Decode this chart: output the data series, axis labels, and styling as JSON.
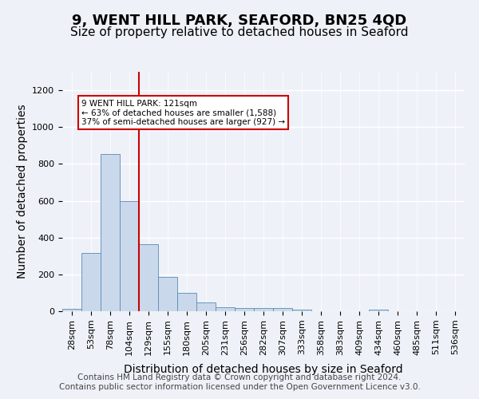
{
  "title": "9, WENT HILL PARK, SEAFORD, BN25 4QD",
  "subtitle": "Size of property relative to detached houses in Seaford",
  "xlabel": "Distribution of detached houses by size in Seaford",
  "ylabel": "Number of detached properties",
  "bin_labels": [
    "28sqm",
    "53sqm",
    "78sqm",
    "104sqm",
    "129sqm",
    "155sqm",
    "180sqm",
    "205sqm",
    "231sqm",
    "256sqm",
    "282sqm",
    "307sqm",
    "333sqm",
    "358sqm",
    "383sqm",
    "409sqm",
    "434sqm",
    "460sqm",
    "485sqm",
    "511sqm",
    "536sqm"
  ],
  "bar_heights": [
    15,
    315,
    855,
    600,
    365,
    185,
    100,
    48,
    20,
    18,
    18,
    18,
    8,
    0,
    0,
    0,
    8,
    0,
    0,
    0,
    0
  ],
  "bar_color": "#c9d9eb",
  "bar_edge_color": "#5b8ab5",
  "bar_width": 1.0,
  "ylim": [
    0,
    1300
  ],
  "yticks": [
    0,
    200,
    400,
    600,
    800,
    1000,
    1200
  ],
  "vline_x": 3.5,
  "annotation_text": "9 WENT HILL PARK: 121sqm\n← 63% of detached houses are smaller (1,588)\n37% of semi-detached houses are larger (927) →",
  "annotation_box_color": "#ffffff",
  "annotation_box_edge_color": "#cc0000",
  "background_color": "#eef2f8",
  "grid_color": "#ffffff",
  "footer_text": "Contains HM Land Registry data © Crown copyright and database right 2024.\nContains public sector information licensed under the Open Government Licence v3.0.",
  "title_fontsize": 13,
  "subtitle_fontsize": 11,
  "xlabel_fontsize": 10,
  "ylabel_fontsize": 10,
  "tick_fontsize": 8,
  "footer_fontsize": 7.5
}
